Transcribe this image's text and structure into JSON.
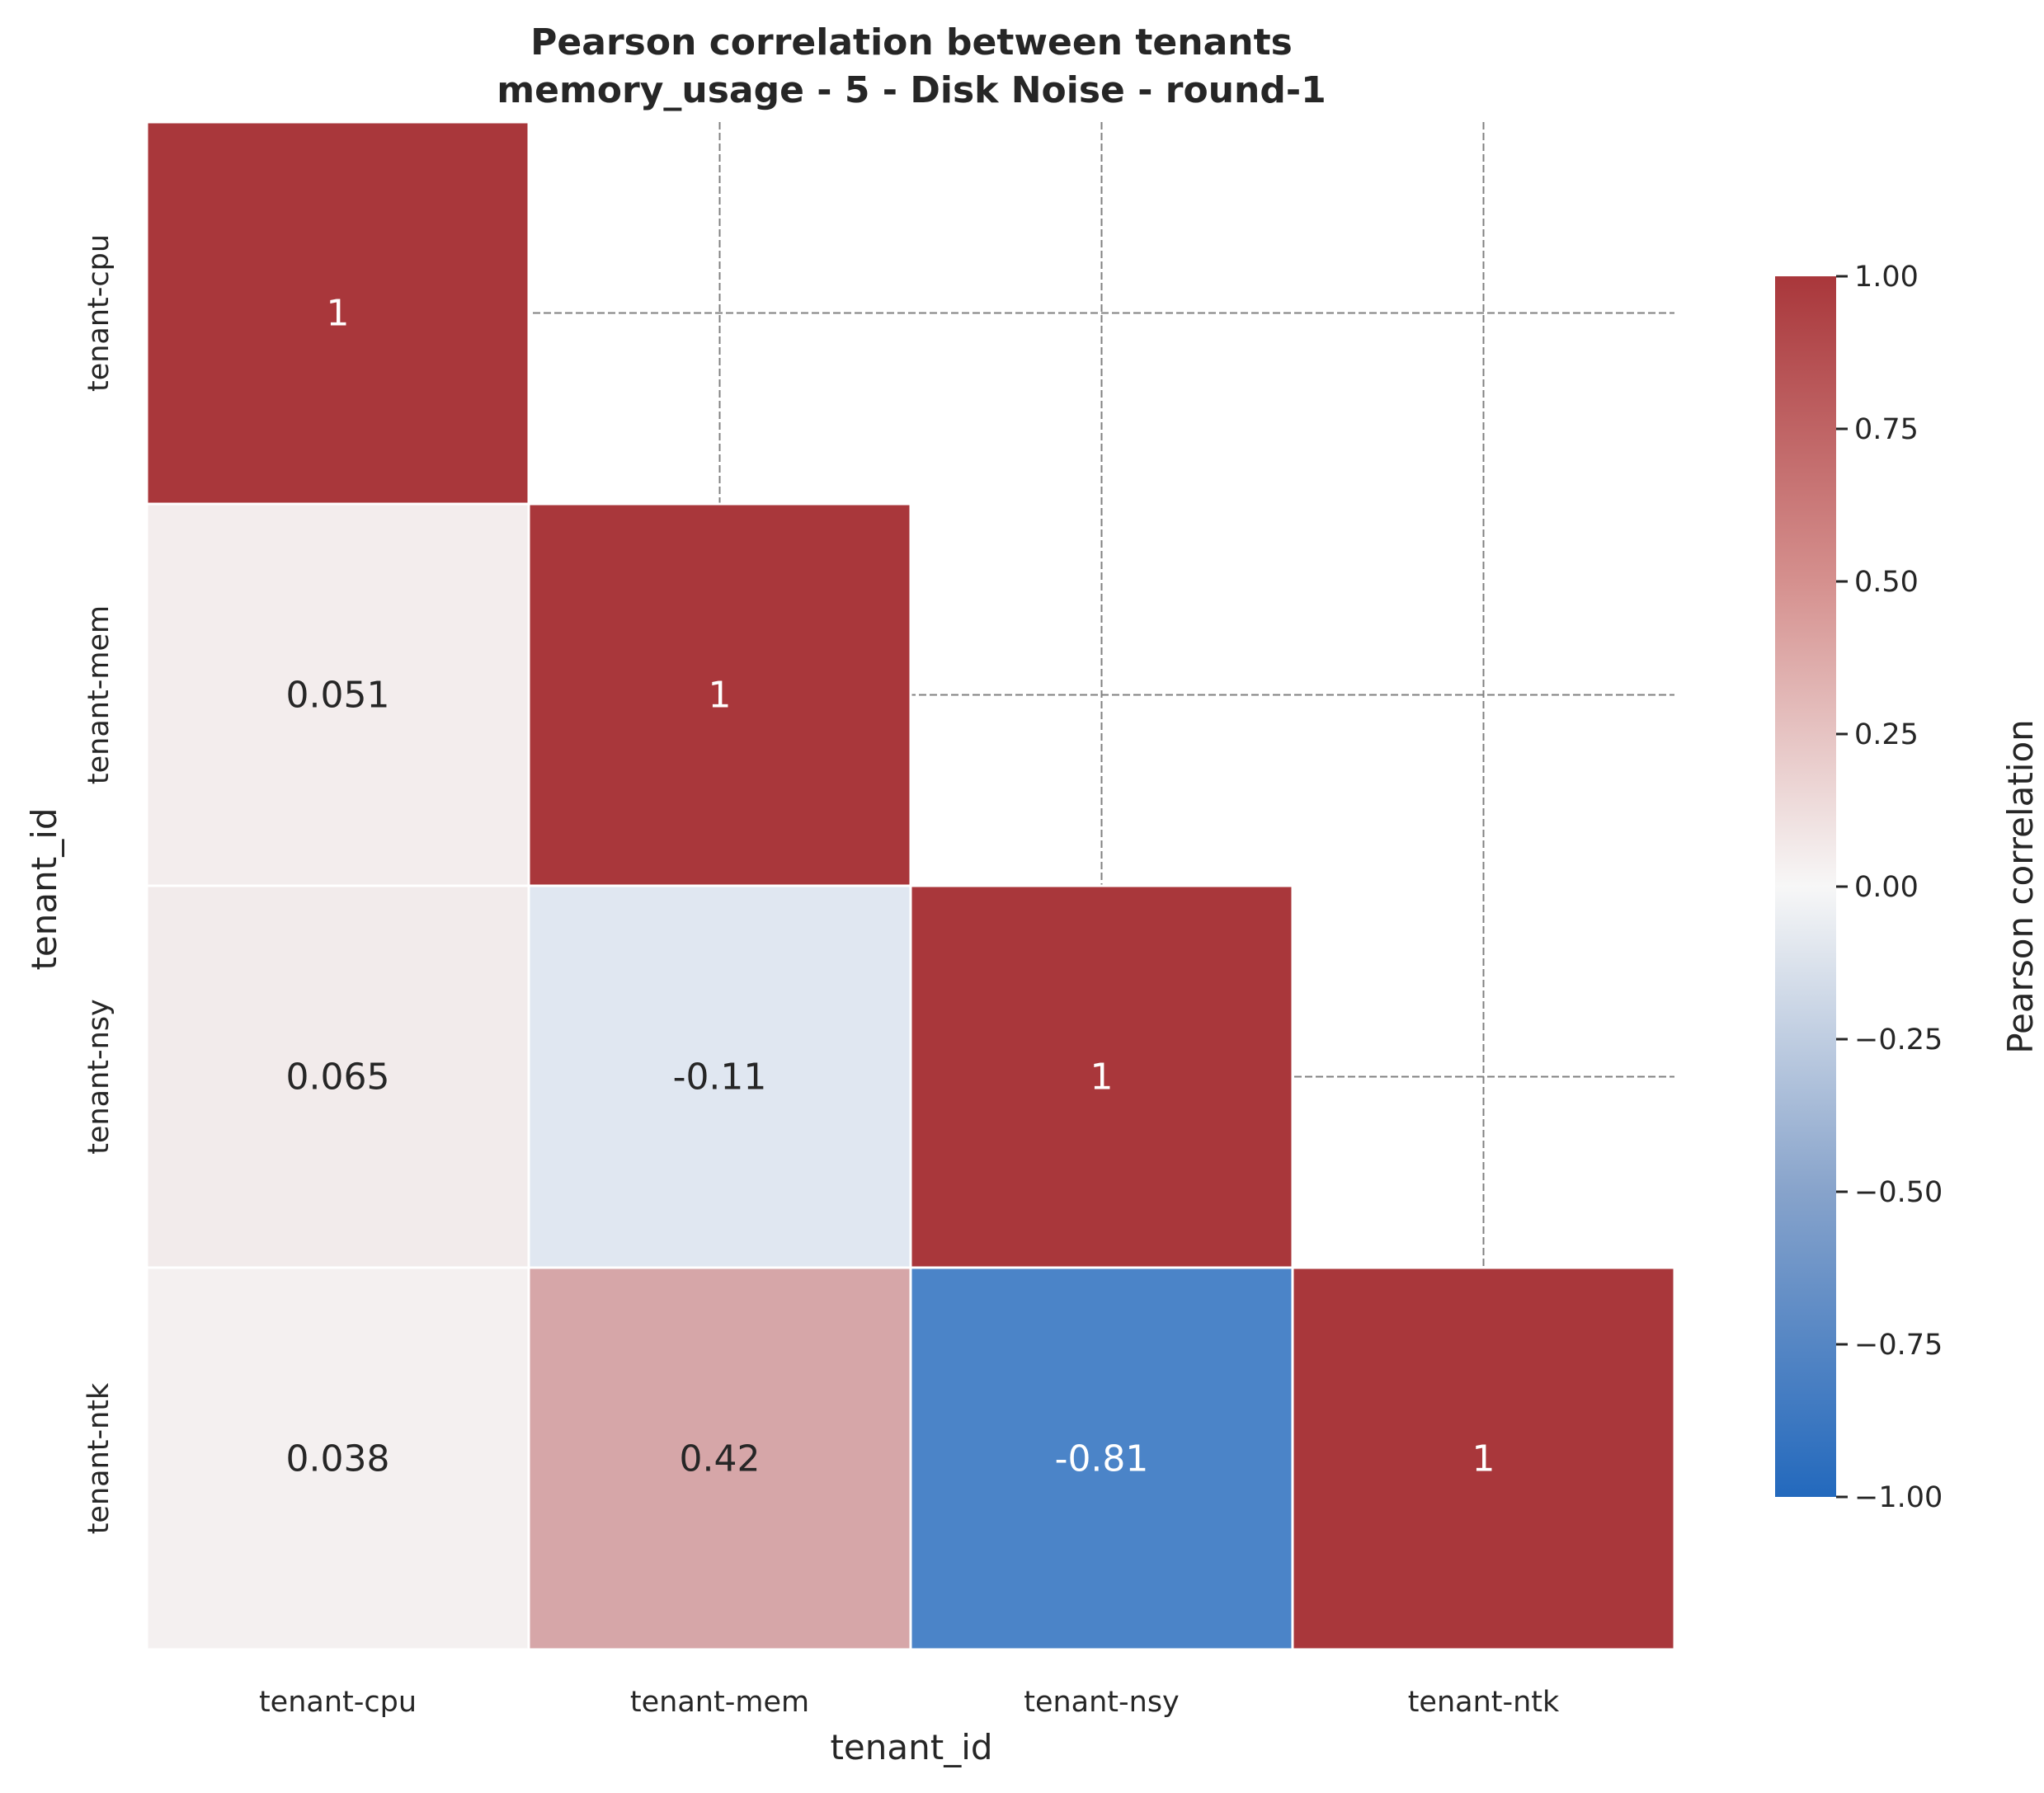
{
  "chart_data": {
    "type": "heatmap",
    "title_lines": [
      "Pearson correlation between tenants",
      "memory_usage - 5 - Disk Noise - round-1"
    ],
    "xlabel": "tenant_id",
    "ylabel": "tenant_id",
    "x_categories": [
      "tenant-cpu",
      "tenant-mem",
      "tenant-nsy",
      "tenant-ntk"
    ],
    "y_categories": [
      "tenant-cpu",
      "tenant-mem",
      "tenant-nsy",
      "tenant-ntk"
    ],
    "mask": "upper-triangle",
    "cells": [
      {
        "row": 0,
        "col": 0,
        "value": 1,
        "label": "1"
      },
      {
        "row": 1,
        "col": 0,
        "value": 0.051,
        "label": "0.051"
      },
      {
        "row": 1,
        "col": 1,
        "value": 1,
        "label": "1"
      },
      {
        "row": 2,
        "col": 0,
        "value": 0.065,
        "label": "0.065"
      },
      {
        "row": 2,
        "col": 1,
        "value": -0.11,
        "label": "-0.11"
      },
      {
        "row": 2,
        "col": 2,
        "value": 1,
        "label": "1"
      },
      {
        "row": 3,
        "col": 0,
        "value": 0.038,
        "label": "0.038"
      },
      {
        "row": 3,
        "col": 1,
        "value": 0.42,
        "label": "0.42"
      },
      {
        "row": 3,
        "col": 2,
        "value": -0.81,
        "label": "-0.81"
      },
      {
        "row": 3,
        "col": 3,
        "value": 1,
        "label": "1"
      }
    ],
    "colorbar": {
      "label": "Pearson correlation",
      "vmin": -1.0,
      "vmax": 1.0,
      "ticks": [
        1.0,
        0.75,
        0.5,
        0.25,
        0.0,
        -0.25,
        -0.5,
        -0.75,
        -1.0
      ],
      "tick_labels": [
        "1.00",
        "0.75",
        "0.50",
        "0.25",
        "0.00",
        "−0.25",
        "−0.50",
        "−0.75",
        "−1.00"
      ],
      "colormap": "vlag",
      "colors": [
        "#2369bd",
        "#f7f7f7",
        "#a9373b"
      ]
    },
    "grid": true
  }
}
